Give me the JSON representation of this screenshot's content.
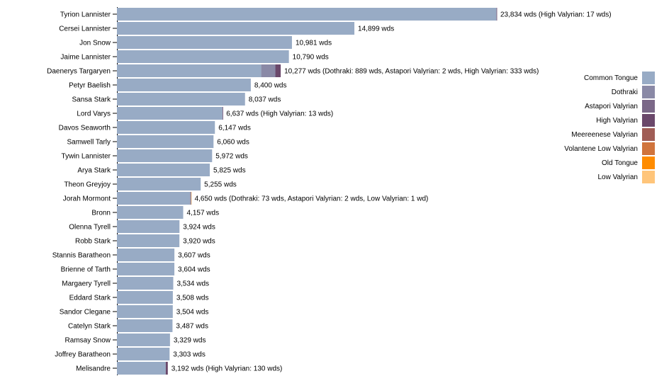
{
  "chart_data": {
    "type": "bar",
    "orientation": "horizontal",
    "stacked": true,
    "value_unit": "wds",
    "categories": [
      "Tyrion Lannister",
      "Cersei Lannister",
      "Jon Snow",
      "Jaime Lannister",
      "Daenerys Targaryen",
      "Petyr Baelish",
      "Sansa Stark",
      "Lord Varys",
      "Davos Seaworth",
      "Samwell Tarly",
      "Tywin Lannister",
      "Arya Stark",
      "Theon Greyjoy",
      "Jorah Mormont",
      "Bronn",
      "Olenna Tyrell",
      "Robb Stark",
      "Stannis Baratheon",
      "Brienne of Tarth",
      "Margaery Tyrell",
      "Eddard Stark",
      "Sandor Clegane",
      "Catelyn Stark",
      "Ramsay Snow",
      "Joffrey Baratheon",
      "Melisandre"
    ],
    "series": [
      {
        "name": "Common Tongue",
        "color": "#98abc5",
        "values": [
          23817,
          14899,
          10981,
          10790,
          9053,
          8400,
          8037,
          6624,
          6147,
          6060,
          5972,
          5825,
          5255,
          4574,
          4157,
          3924,
          3920,
          3607,
          3604,
          3534,
          3508,
          3504,
          3487,
          3329,
          3303,
          3062
        ]
      },
      {
        "name": "Dothraki",
        "color": "#8a89a6",
        "values": [
          0,
          0,
          0,
          0,
          889,
          0,
          0,
          0,
          0,
          0,
          0,
          0,
          0,
          73,
          0,
          0,
          0,
          0,
          0,
          0,
          0,
          0,
          0,
          0,
          0,
          0
        ]
      },
      {
        "name": "Astapori Valyrian",
        "color": "#7b6888",
        "values": [
          0,
          0,
          0,
          0,
          2,
          0,
          0,
          0,
          0,
          0,
          0,
          0,
          0,
          2,
          0,
          0,
          0,
          0,
          0,
          0,
          0,
          0,
          0,
          0,
          0,
          0
        ]
      },
      {
        "name": "High Valyrian",
        "color": "#6b486b",
        "values": [
          17,
          0,
          0,
          0,
          333,
          0,
          0,
          13,
          0,
          0,
          0,
          0,
          0,
          0,
          0,
          0,
          0,
          0,
          0,
          0,
          0,
          0,
          0,
          0,
          0,
          130
        ]
      },
      {
        "name": "Meereenese Valyrian",
        "color": "#a05d56",
        "values": [
          0,
          0,
          0,
          0,
          0,
          0,
          0,
          0,
          0,
          0,
          0,
          0,
          0,
          0,
          0,
          0,
          0,
          0,
          0,
          0,
          0,
          0,
          0,
          0,
          0,
          0
        ]
      },
      {
        "name": "Volantene Low Valyrian",
        "color": "#d0743c",
        "values": [
          0,
          0,
          0,
          0,
          0,
          0,
          0,
          0,
          0,
          0,
          0,
          0,
          0,
          0,
          0,
          0,
          0,
          0,
          0,
          0,
          0,
          0,
          0,
          0,
          0,
          0
        ]
      },
      {
        "name": "Old Tongue",
        "color": "#ff8c00",
        "values": [
          0,
          0,
          0,
          0,
          0,
          0,
          0,
          0,
          0,
          0,
          0,
          0,
          0,
          0,
          0,
          0,
          0,
          0,
          0,
          0,
          0,
          0,
          0,
          0,
          0,
          0
        ]
      },
      {
        "name": "Low Valyrian",
        "color": "#ffc57a",
        "values": [
          0,
          0,
          0,
          0,
          0,
          0,
          0,
          0,
          0,
          0,
          0,
          0,
          0,
          1,
          0,
          0,
          0,
          0,
          0,
          0,
          0,
          0,
          0,
          0,
          0,
          0
        ]
      }
    ],
    "data_labels": [
      "23,834 wds (High Valyrian: 17 wds)",
      "14,899 wds",
      "10,981 wds",
      "10,790 wds",
      "10,277 wds (Dothraki: 889 wds, Astapori Valyrian: 2 wds, High Valyrian: 333 wds)",
      "8,400 wds",
      "8,037 wds",
      "6,637 wds (High Valyrian: 13 wds)",
      "6,147 wds",
      "6,060 wds",
      "5,972 wds",
      "5,825 wds",
      "5,255 wds",
      "4,650 wds (Dothraki: 73 wds, Astapori Valyrian: 2 wds, Low Valyrian: 1 wd)",
      "4,157 wds",
      "3,924 wds",
      "3,920 wds",
      "3,607 wds",
      "3,604 wds",
      "3,534 wds",
      "3,508 wds",
      "3,504 wds",
      "3,487 wds",
      "3,329 wds",
      "3,303 wds",
      "3,192 wds (High Valyrian: 130 wds)"
    ],
    "legend_position": "right",
    "grid": false
  },
  "legend": [
    {
      "label": "Common Tongue",
      "color": "#98abc5"
    },
    {
      "label": "Dothraki",
      "color": "#8a89a6"
    },
    {
      "label": "Astapori Valyrian",
      "color": "#7b6888"
    },
    {
      "label": "High Valyrian",
      "color": "#6b486b"
    },
    {
      "label": "Meereenese Valyrian",
      "color": "#a05d56"
    },
    {
      "label": "Volantene Low Valyrian",
      "color": "#d0743c"
    },
    {
      "label": "Old Tongue",
      "color": "#ff8c00"
    },
    {
      "label": "Low Valyrian",
      "color": "#ffc57a"
    }
  ]
}
